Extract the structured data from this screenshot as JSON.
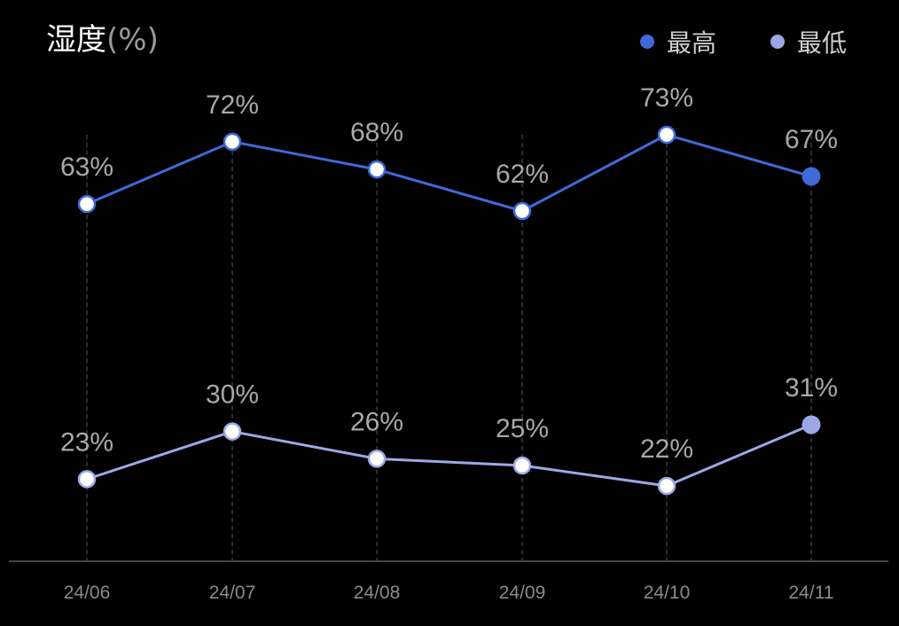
{
  "title": {
    "main": "湿度",
    "unit": "(%)"
  },
  "legend": [
    {
      "label": "最高",
      "color": "#3f6ad8"
    },
    {
      "label": "最低",
      "color": "#9aa9e6"
    }
  ],
  "chart_data": {
    "type": "line",
    "title": "湿度(%)",
    "categories": [
      "24/06",
      "24/07",
      "24/08",
      "24/09",
      "24/10",
      "24/11"
    ],
    "series": [
      {
        "name": "最高",
        "values": [
          63,
          72,
          68,
          62,
          73,
          67
        ],
        "labels": [
          "63%",
          "72%",
          "68%",
          "62%",
          "73%",
          "67%"
        ],
        "color": "#3f6ad8"
      },
      {
        "name": "最低",
        "values": [
          23,
          30,
          26,
          25,
          22,
          31
        ],
        "labels": [
          "23%",
          "30%",
          "26%",
          "25%",
          "22%",
          "31%"
        ],
        "color": "#9aa9e6"
      }
    ],
    "xlabel": "",
    "ylabel": "",
    "ylim": [
      0,
      100
    ],
    "grid": "vertical-dashed",
    "legend_position": "top-right"
  }
}
